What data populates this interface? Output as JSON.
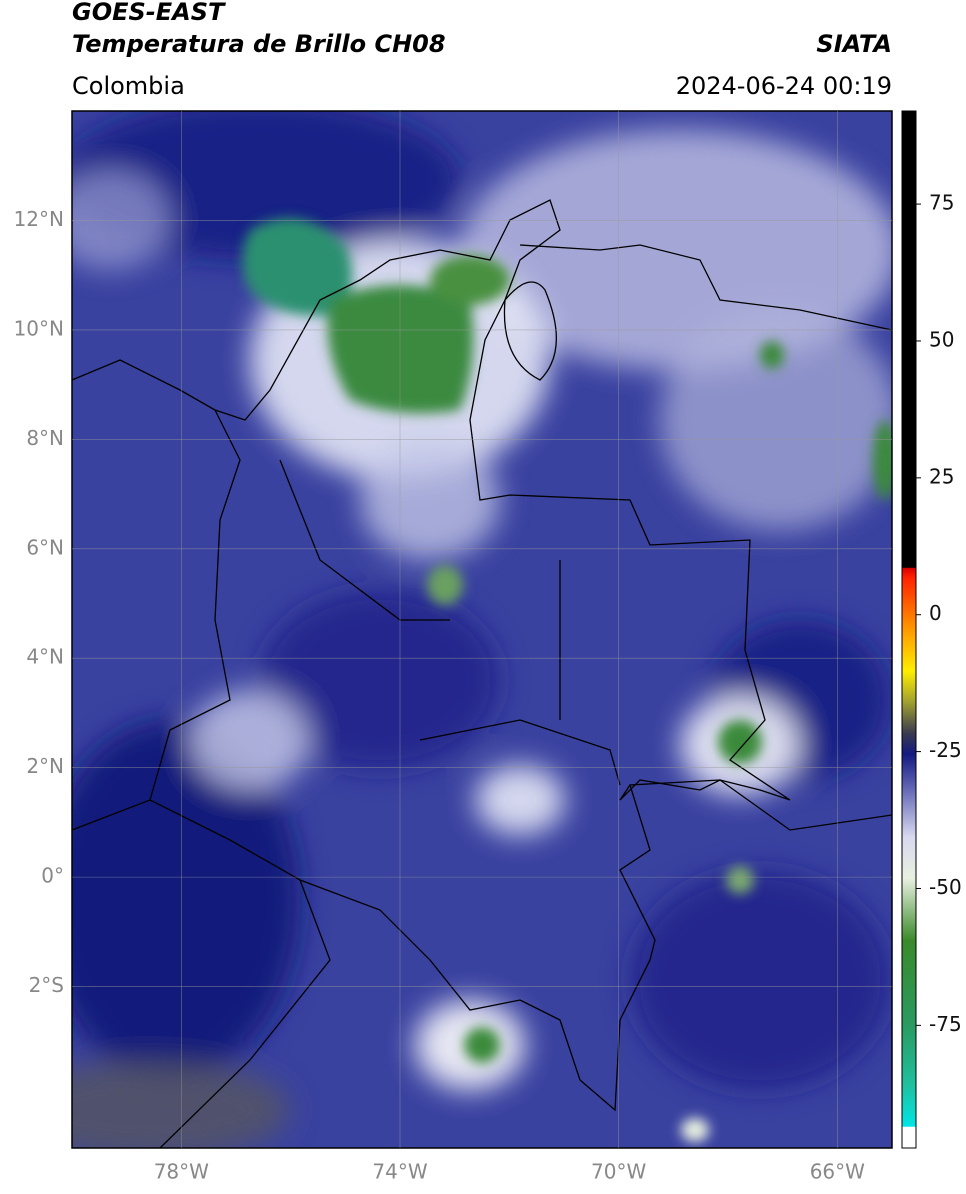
{
  "header": {
    "title": "GOES-EAST",
    "subtitle": "Temperatura de Brillo CH08",
    "source": "SIATA",
    "region": "Colombia",
    "datetime": "2024-06-24 00:19"
  },
  "map": {
    "lonlim": [
      -80,
      -65
    ],
    "latlim": [
      -4.95,
      14
    ],
    "lon_ticks": [
      {
        "value": -78,
        "label": "78°W"
      },
      {
        "value": -74,
        "label": "74°W"
      },
      {
        "value": -70,
        "label": "70°W"
      },
      {
        "value": -66,
        "label": "66°W"
      }
    ],
    "lat_ticks": [
      {
        "value": 12,
        "label": "12°N"
      },
      {
        "value": 10,
        "label": "10°N"
      },
      {
        "value": 8,
        "label": "8°N"
      },
      {
        "value": 6,
        "label": "6°N"
      },
      {
        "value": 4,
        "label": "4°N"
      },
      {
        "value": 2,
        "label": "2°N"
      },
      {
        "value": 0,
        "label": "0°"
      },
      {
        "value": -2,
        "label": "2°S"
      }
    ]
  },
  "colorbar": {
    "lim": [
      -97.4,
      92
    ],
    "ticks": [
      75,
      50,
      25,
      0,
      -25,
      -50,
      -75
    ]
  }
}
